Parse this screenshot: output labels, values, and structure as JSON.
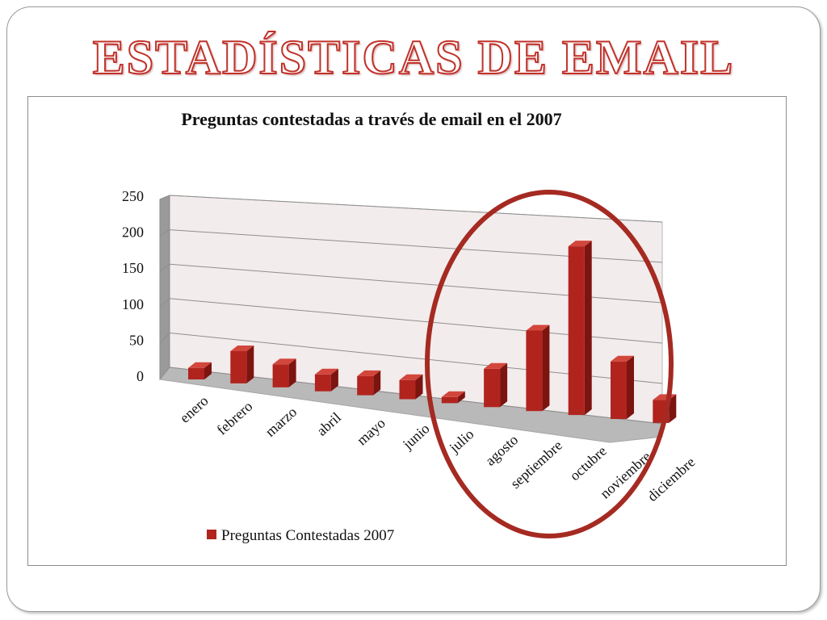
{
  "slide": {
    "title": "ESTADÍSTICAS DE EMAIL"
  },
  "colors": {
    "bar_front": "#b1241e",
    "bar_side": "#7c1410",
    "bar_top": "#d2463c",
    "highlight_ellipse": "#a52a22",
    "title_stroke": "#c0322a"
  },
  "chart_data": {
    "type": "bar",
    "title": "Preguntas contestadas a través de email en el 2007",
    "categories": [
      "enero",
      "febrero",
      "marzo",
      "abril",
      "mayo",
      "junio",
      "julio",
      "agosto",
      "septiembre",
      "octubre",
      "noviembre",
      "diciembre"
    ],
    "series": [
      {
        "name": "Preguntas Contestadas 2007",
        "values": [
          15,
          42,
          30,
          22,
          25,
          25,
          8,
          50,
          105,
          220,
          75,
          30
        ]
      }
    ],
    "ylim": [
      0,
      250
    ],
    "yticks": [
      "0",
      "50",
      "100",
      "150",
      "200",
      "250"
    ],
    "grid": true,
    "style": "3d-perspective",
    "legend": "bottom",
    "annotation": "ellipse highlighting agosto–diciembre"
  }
}
